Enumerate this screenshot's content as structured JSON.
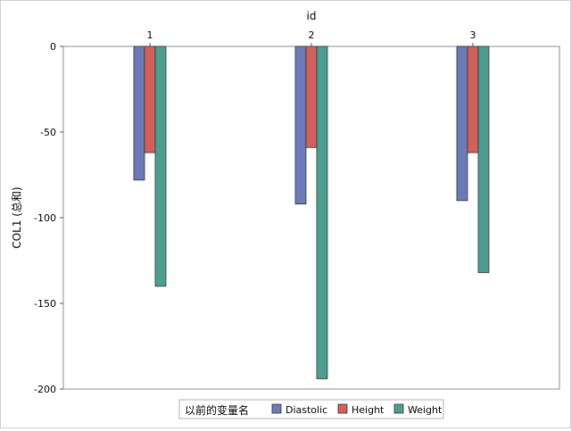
{
  "chart_data": {
    "type": "bar",
    "xlabel": "id",
    "ylabel": "COL1 (总和)",
    "categories": [
      "1",
      "2",
      "3"
    ],
    "ylim": [
      -200,
      0
    ],
    "yticks": [
      0,
      -50,
      -100,
      -150,
      -200
    ],
    "ytick_labels": [
      "0",
      "-50",
      "-100",
      "-150",
      "-200"
    ],
    "x_axis_position": "top",
    "grid": false,
    "legend_position": "bottom",
    "legend_title": "以前的变量名",
    "series": [
      {
        "name": "Diastolic",
        "color": "#6b7bb8",
        "values": [
          -78,
          -92,
          -90
        ]
      },
      {
        "name": "Height",
        "color": "#d1605a",
        "values": [
          -62,
          -59,
          -62
        ]
      },
      {
        "name": "Weight",
        "color": "#4e9e8f",
        "values": [
          -140,
          -194,
          -132
        ]
      }
    ]
  }
}
